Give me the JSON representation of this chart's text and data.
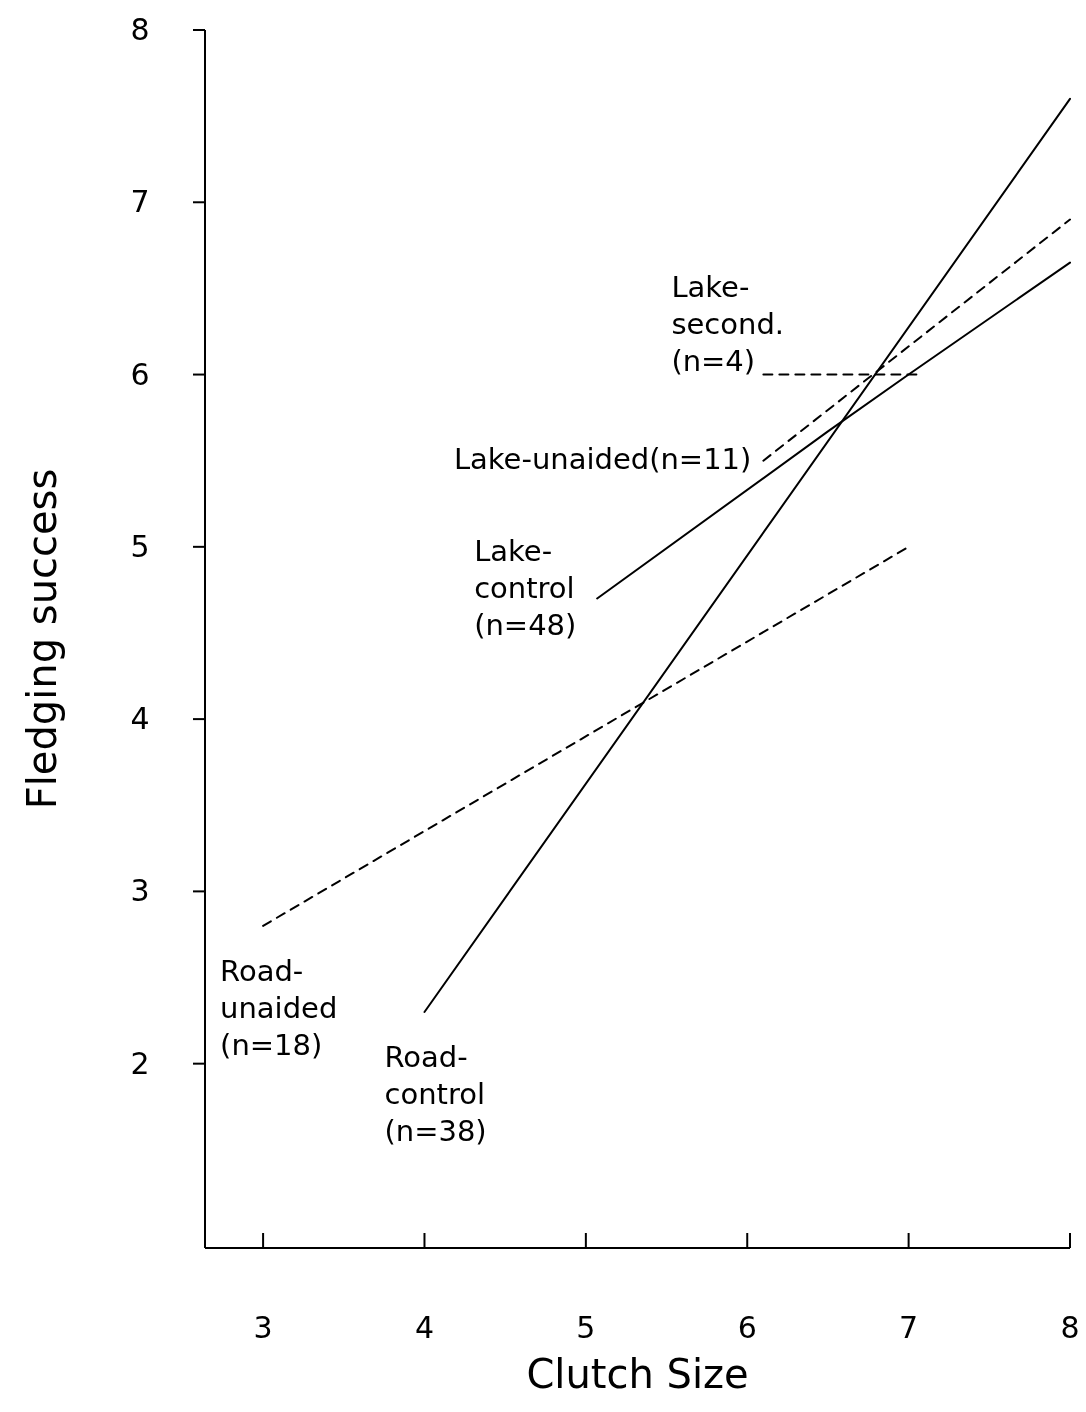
{
  "chart_data": {
    "type": "line",
    "xlabel": "Clutch Size",
    "ylabel": "Fledging success",
    "xlim": [
      2.64,
      8
    ],
    "ylim": [
      0.93,
      8
    ],
    "xticks": [
      3,
      4,
      5,
      6,
      7,
      8
    ],
    "yticks": [
      2,
      3,
      4,
      5,
      6,
      7,
      8
    ],
    "series": [
      {
        "name": "Road-\ncontrol\n(n=38)",
        "color": "#000000",
        "line_style": "solid",
        "x": [
          4,
          8
        ],
        "values": [
          2.3,
          7.6
        ]
      },
      {
        "name": "Road-\nunaided\n(n=18)",
        "color": "#000000",
        "line_style": "dashed",
        "x": [
          3,
          7
        ],
        "values": [
          2.8,
          5.0
        ]
      },
      {
        "name": "Lake-\ncontrol\n(n=48)",
        "color": "#000000",
        "line_style": "solid",
        "x": [
          5.07,
          6.5,
          7,
          8
        ],
        "values": [
          4.7,
          5.67,
          6.0,
          6.65
        ]
      },
      {
        "name": "Lake-unaided(n=11)",
        "color": "#000000",
        "line_style": "dashed",
        "x": [
          6.1,
          8
        ],
        "values": [
          5.5,
          6.9
        ]
      },
      {
        "name": "Lake-\nsecond.\n(n=4)",
        "color": "#000000",
        "line_style": "dashed",
        "x": [
          6.1,
          7.05
        ],
        "values": [
          6.0,
          6.0
        ]
      }
    ]
  }
}
